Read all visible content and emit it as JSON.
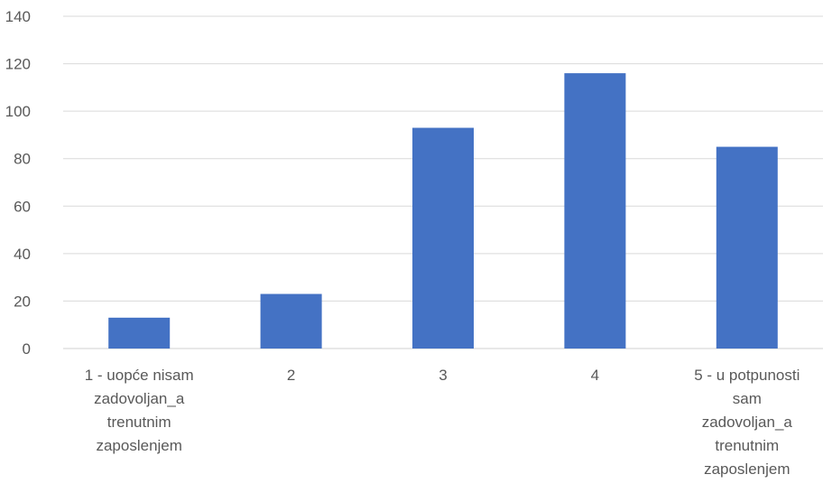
{
  "chart_data": {
    "type": "bar",
    "categories": [
      [
        "1 - uopće nisam",
        "zadovoljan_a",
        "trenutnim",
        "zaposlenjem"
      ],
      [
        "2"
      ],
      [
        "3"
      ],
      [
        "4"
      ],
      [
        "5 - u potpunosti",
        "sam",
        "zadovoljan_a",
        "trenutnim",
        "zaposlenjem"
      ]
    ],
    "values": [
      13,
      23,
      93,
      116,
      85
    ],
    "ylim": [
      0,
      140
    ],
    "yticks": [
      0,
      20,
      40,
      60,
      80,
      100,
      120,
      140
    ],
    "grid": true,
    "bar_color": "#4472c4",
    "grid_color": "#d9d9d9",
    "text_color": "#595959"
  }
}
